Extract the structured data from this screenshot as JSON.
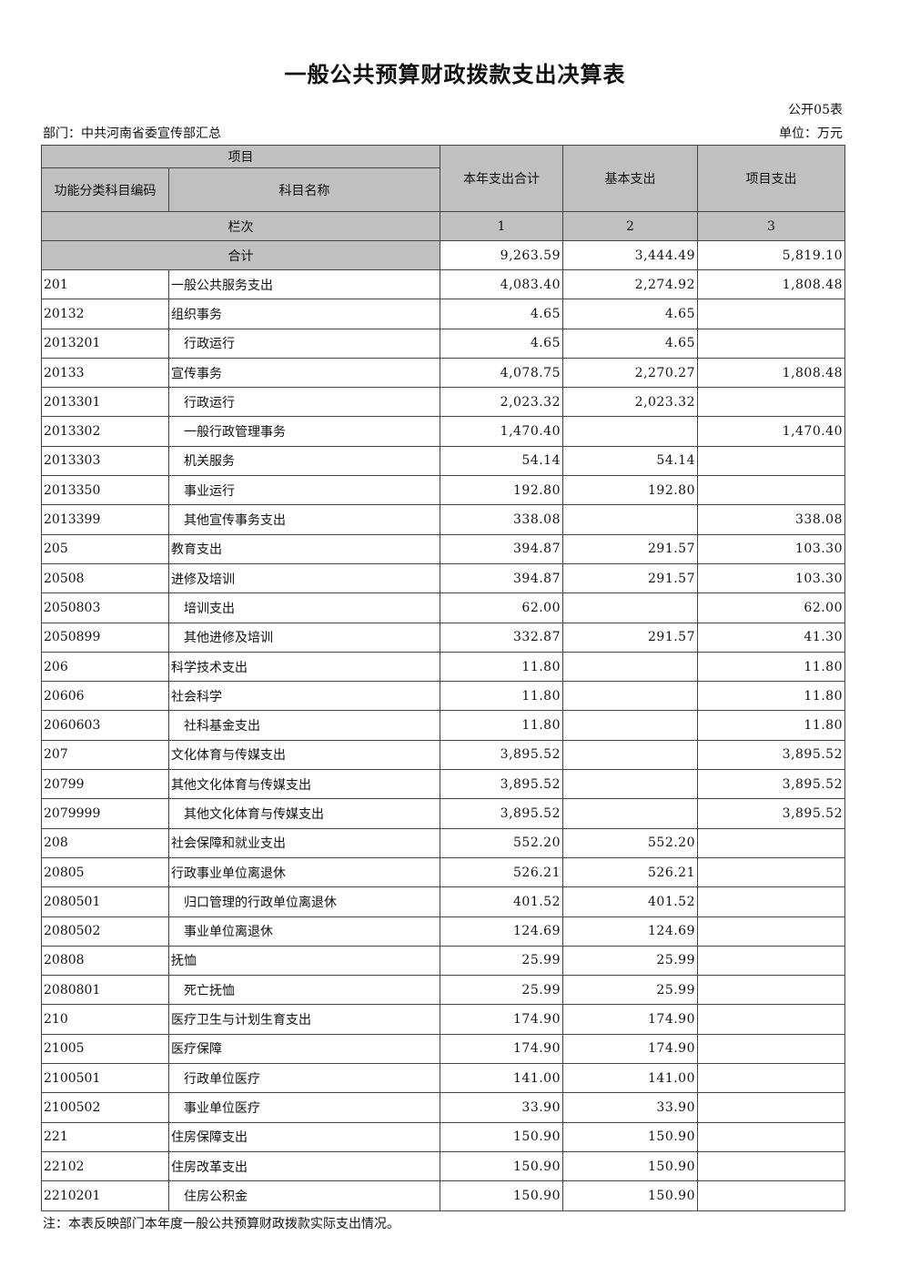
{
  "title": "一般公共预算财政拨款支出决算表",
  "form_no": "公开05表",
  "department": "部门：中共河南省委宣传部汇总",
  "unit": "单位：万元",
  "header": {
    "item": "项目",
    "code": "功能分类科目编码",
    "name": "科目名称",
    "total": "本年支出合计",
    "basic": "基本支出",
    "project": "项目支出",
    "column_index": "栏次",
    "col1": "1",
    "col2": "2",
    "col3": "3",
    "sum_label": "合计"
  },
  "sum": {
    "total": "9,263.59",
    "basic": "3,444.49",
    "project": "5,819.10"
  },
  "rows": [
    {
      "code": "201",
      "name": "一般公共服务支出",
      "total": "4,083.40",
      "basic": "2,274.92",
      "project": "1,808.48"
    },
    {
      "code": "20132",
      "name": "组织事务",
      "total": "4.65",
      "basic": "4.65",
      "project": ""
    },
    {
      "code": "2013201",
      "name": "行政运行",
      "total": "4.65",
      "basic": "4.65",
      "project": ""
    },
    {
      "code": "20133",
      "name": "宣传事务",
      "total": "4,078.75",
      "basic": "2,270.27",
      "project": "1,808.48"
    },
    {
      "code": "2013301",
      "name": "行政运行",
      "total": "2,023.32",
      "basic": "2,023.32",
      "project": ""
    },
    {
      "code": "2013302",
      "name": "一般行政管理事务",
      "total": "1,470.40",
      "basic": "",
      "project": "1,470.40"
    },
    {
      "code": "2013303",
      "name": "机关服务",
      "total": "54.14",
      "basic": "54.14",
      "project": ""
    },
    {
      "code": "2013350",
      "name": "事业运行",
      "total": "192.80",
      "basic": "192.80",
      "project": ""
    },
    {
      "code": "2013399",
      "name": "其他宣传事务支出",
      "total": "338.08",
      "basic": "",
      "project": "338.08"
    },
    {
      "code": "205",
      "name": "教育支出",
      "total": "394.87",
      "basic": "291.57",
      "project": "103.30"
    },
    {
      "code": "20508",
      "name": "进修及培训",
      "total": "394.87",
      "basic": "291.57",
      "project": "103.30"
    },
    {
      "code": "2050803",
      "name": "培训支出",
      "total": "62.00",
      "basic": "",
      "project": "62.00"
    },
    {
      "code": "2050899",
      "name": "其他进修及培训",
      "total": "332.87",
      "basic": "291.57",
      "project": "41.30"
    },
    {
      "code": "206",
      "name": "科学技术支出",
      "total": "11.80",
      "basic": "",
      "project": "11.80"
    },
    {
      "code": "20606",
      "name": "社会科学",
      "total": "11.80",
      "basic": "",
      "project": "11.80"
    },
    {
      "code": "2060603",
      "name": "社科基金支出",
      "total": "11.80",
      "basic": "",
      "project": "11.80"
    },
    {
      "code": "207",
      "name": "文化体育与传媒支出",
      "total": "3,895.52",
      "basic": "",
      "project": "3,895.52"
    },
    {
      "code": "20799",
      "name": "其他文化体育与传媒支出",
      "total": "3,895.52",
      "basic": "",
      "project": "3,895.52"
    },
    {
      "code": "2079999",
      "name": "其他文化体育与传媒支出",
      "total": "3,895.52",
      "basic": "",
      "project": "3,895.52"
    },
    {
      "code": "208",
      "name": "社会保障和就业支出",
      "total": "552.20",
      "basic": "552.20",
      "project": ""
    },
    {
      "code": "20805",
      "name": "行政事业单位离退休",
      "total": "526.21",
      "basic": "526.21",
      "project": ""
    },
    {
      "code": "2080501",
      "name": "归口管理的行政单位离退休",
      "total": "401.52",
      "basic": "401.52",
      "project": ""
    },
    {
      "code": "2080502",
      "name": "事业单位离退休",
      "total": "124.69",
      "basic": "124.69",
      "project": ""
    },
    {
      "code": "20808",
      "name": "抚恤",
      "total": "25.99",
      "basic": "25.99",
      "project": ""
    },
    {
      "code": "2080801",
      "name": "死亡抚恤",
      "total": "25.99",
      "basic": "25.99",
      "project": ""
    },
    {
      "code": "210",
      "name": "医疗卫生与计划生育支出",
      "total": "174.90",
      "basic": "174.90",
      "project": ""
    },
    {
      "code": "21005",
      "name": "医疗保障",
      "total": "174.90",
      "basic": "174.90",
      "project": ""
    },
    {
      "code": "2100501",
      "name": "行政单位医疗",
      "total": "141.00",
      "basic": "141.00",
      "project": ""
    },
    {
      "code": "2100502",
      "name": "事业单位医疗",
      "total": "33.90",
      "basic": "33.90",
      "project": ""
    },
    {
      "code": "221",
      "name": "住房保障支出",
      "total": "150.90",
      "basic": "150.90",
      "project": ""
    },
    {
      "code": "22102",
      "name": "住房改革支出",
      "total": "150.90",
      "basic": "150.90",
      "project": ""
    },
    {
      "code": "2210201",
      "name": "住房公积金",
      "total": "150.90",
      "basic": "150.90",
      "project": ""
    }
  ],
  "note": "注：本表反映部门本年度一般公共预算财政拨款实际支出情况。"
}
